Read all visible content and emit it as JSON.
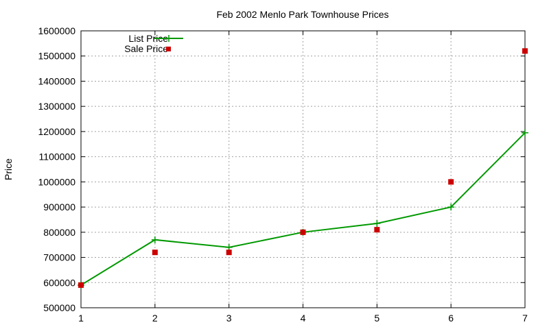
{
  "chart_data": {
    "type": "line",
    "title": "Feb 2002 Menlo Park Townhouse Prices",
    "xlabel": "",
    "ylabel": "Price",
    "x": [
      1,
      2,
      3,
      4,
      5,
      6,
      7
    ],
    "x_ticks": [
      "1",
      "2",
      "3",
      "4",
      "5",
      "6",
      "7"
    ],
    "y_ticks": [
      "500000",
      "600000",
      "700000",
      "800000",
      "900000",
      "1000000",
      "1100000",
      "1200000",
      "1300000",
      "1400000",
      "1500000",
      "1600000"
    ],
    "xlim": [
      1,
      7
    ],
    "ylim": [
      500000,
      1600000
    ],
    "grid": true,
    "legend_position": "top-left",
    "series": [
      {
        "name": "List Price",
        "style": "line with plus markers",
        "color": "#009900",
        "values": [
          590000,
          770000,
          740000,
          800000,
          835000,
          900000,
          1195000
        ]
      },
      {
        "name": "Sale Price",
        "style": "square markers",
        "color": "#cc0000",
        "values": [
          590000,
          720000,
          720000,
          800000,
          810000,
          1000000,
          1520000
        ]
      }
    ]
  }
}
